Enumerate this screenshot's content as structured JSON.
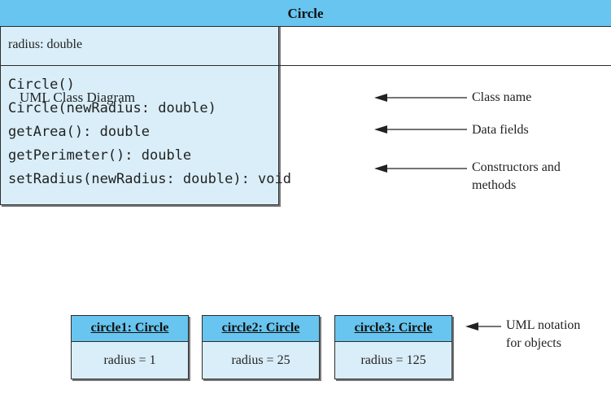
{
  "diagram_label": "UML Class Diagram",
  "class": {
    "name": "Circle",
    "fields": [
      "radius: double"
    ],
    "methods": [
      "Circle()",
      "Circle(newRadius: double)",
      "getArea(): double",
      "getPerimeter(): double",
      "setRadius(newRadius: double): void"
    ]
  },
  "annotations": {
    "class_name": "Class name",
    "data_fields": "Data fields",
    "constructors_line1": "Constructors and",
    "constructors_line2": "methods",
    "uml_notation_line1": "UML notation",
    "uml_notation_line2": "for objects"
  },
  "objects": [
    {
      "name": "circle1: Circle",
      "field": "radius = 1"
    },
    {
      "name": "circle2: Circle",
      "field": "radius = 25"
    },
    {
      "name": "circle3: Circle",
      "field": "radius = 125"
    }
  ],
  "colors": {
    "header_fill": "#67c5ef",
    "body_fill": "#d9eef8",
    "border": "#2c2c2c"
  }
}
